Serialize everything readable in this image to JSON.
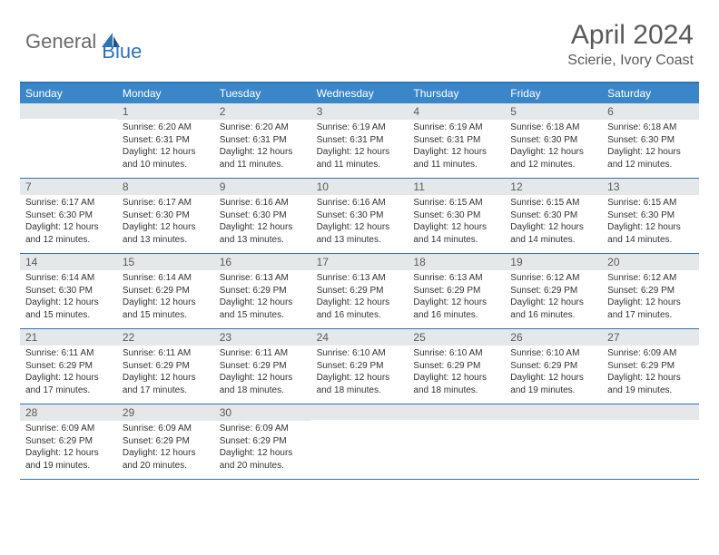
{
  "logo": {
    "general": "General",
    "blue": "Blue"
  },
  "title": "April 2024",
  "location": "Scierie, Ivory Coast",
  "colors": {
    "header_bg": "#3b86c8",
    "border": "#2e72b8",
    "daynum_bg": "#e5e8ea",
    "text": "#333333",
    "title_text": "#5a5a5a"
  },
  "dow": [
    "Sunday",
    "Monday",
    "Tuesday",
    "Wednesday",
    "Thursday",
    "Friday",
    "Saturday"
  ],
  "weeks": [
    [
      {
        "n": "",
        "empty": true
      },
      {
        "n": "1",
        "sr": "Sunrise: 6:20 AM",
        "ss": "Sunset: 6:31 PM",
        "dl1": "Daylight: 12 hours",
        "dl2": "and 10 minutes."
      },
      {
        "n": "2",
        "sr": "Sunrise: 6:20 AM",
        "ss": "Sunset: 6:31 PM",
        "dl1": "Daylight: 12 hours",
        "dl2": "and 11 minutes."
      },
      {
        "n": "3",
        "sr": "Sunrise: 6:19 AM",
        "ss": "Sunset: 6:31 PM",
        "dl1": "Daylight: 12 hours",
        "dl2": "and 11 minutes."
      },
      {
        "n": "4",
        "sr": "Sunrise: 6:19 AM",
        "ss": "Sunset: 6:31 PM",
        "dl1": "Daylight: 12 hours",
        "dl2": "and 11 minutes."
      },
      {
        "n": "5",
        "sr": "Sunrise: 6:18 AM",
        "ss": "Sunset: 6:30 PM",
        "dl1": "Daylight: 12 hours",
        "dl2": "and 12 minutes."
      },
      {
        "n": "6",
        "sr": "Sunrise: 6:18 AM",
        "ss": "Sunset: 6:30 PM",
        "dl1": "Daylight: 12 hours",
        "dl2": "and 12 minutes."
      }
    ],
    [
      {
        "n": "7",
        "sr": "Sunrise: 6:17 AM",
        "ss": "Sunset: 6:30 PM",
        "dl1": "Daylight: 12 hours",
        "dl2": "and 12 minutes."
      },
      {
        "n": "8",
        "sr": "Sunrise: 6:17 AM",
        "ss": "Sunset: 6:30 PM",
        "dl1": "Daylight: 12 hours",
        "dl2": "and 13 minutes."
      },
      {
        "n": "9",
        "sr": "Sunrise: 6:16 AM",
        "ss": "Sunset: 6:30 PM",
        "dl1": "Daylight: 12 hours",
        "dl2": "and 13 minutes."
      },
      {
        "n": "10",
        "sr": "Sunrise: 6:16 AM",
        "ss": "Sunset: 6:30 PM",
        "dl1": "Daylight: 12 hours",
        "dl2": "and 13 minutes."
      },
      {
        "n": "11",
        "sr": "Sunrise: 6:15 AM",
        "ss": "Sunset: 6:30 PM",
        "dl1": "Daylight: 12 hours",
        "dl2": "and 14 minutes."
      },
      {
        "n": "12",
        "sr": "Sunrise: 6:15 AM",
        "ss": "Sunset: 6:30 PM",
        "dl1": "Daylight: 12 hours",
        "dl2": "and 14 minutes."
      },
      {
        "n": "13",
        "sr": "Sunrise: 6:15 AM",
        "ss": "Sunset: 6:30 PM",
        "dl1": "Daylight: 12 hours",
        "dl2": "and 14 minutes."
      }
    ],
    [
      {
        "n": "14",
        "sr": "Sunrise: 6:14 AM",
        "ss": "Sunset: 6:30 PM",
        "dl1": "Daylight: 12 hours",
        "dl2": "and 15 minutes."
      },
      {
        "n": "15",
        "sr": "Sunrise: 6:14 AM",
        "ss": "Sunset: 6:29 PM",
        "dl1": "Daylight: 12 hours",
        "dl2": "and 15 minutes."
      },
      {
        "n": "16",
        "sr": "Sunrise: 6:13 AM",
        "ss": "Sunset: 6:29 PM",
        "dl1": "Daylight: 12 hours",
        "dl2": "and 15 minutes."
      },
      {
        "n": "17",
        "sr": "Sunrise: 6:13 AM",
        "ss": "Sunset: 6:29 PM",
        "dl1": "Daylight: 12 hours",
        "dl2": "and 16 minutes."
      },
      {
        "n": "18",
        "sr": "Sunrise: 6:13 AM",
        "ss": "Sunset: 6:29 PM",
        "dl1": "Daylight: 12 hours",
        "dl2": "and 16 minutes."
      },
      {
        "n": "19",
        "sr": "Sunrise: 6:12 AM",
        "ss": "Sunset: 6:29 PM",
        "dl1": "Daylight: 12 hours",
        "dl2": "and 16 minutes."
      },
      {
        "n": "20",
        "sr": "Sunrise: 6:12 AM",
        "ss": "Sunset: 6:29 PM",
        "dl1": "Daylight: 12 hours",
        "dl2": "and 17 minutes."
      }
    ],
    [
      {
        "n": "21",
        "sr": "Sunrise: 6:11 AM",
        "ss": "Sunset: 6:29 PM",
        "dl1": "Daylight: 12 hours",
        "dl2": "and 17 minutes."
      },
      {
        "n": "22",
        "sr": "Sunrise: 6:11 AM",
        "ss": "Sunset: 6:29 PM",
        "dl1": "Daylight: 12 hours",
        "dl2": "and 17 minutes."
      },
      {
        "n": "23",
        "sr": "Sunrise: 6:11 AM",
        "ss": "Sunset: 6:29 PM",
        "dl1": "Daylight: 12 hours",
        "dl2": "and 18 minutes."
      },
      {
        "n": "24",
        "sr": "Sunrise: 6:10 AM",
        "ss": "Sunset: 6:29 PM",
        "dl1": "Daylight: 12 hours",
        "dl2": "and 18 minutes."
      },
      {
        "n": "25",
        "sr": "Sunrise: 6:10 AM",
        "ss": "Sunset: 6:29 PM",
        "dl1": "Daylight: 12 hours",
        "dl2": "and 18 minutes."
      },
      {
        "n": "26",
        "sr": "Sunrise: 6:10 AM",
        "ss": "Sunset: 6:29 PM",
        "dl1": "Daylight: 12 hours",
        "dl2": "and 19 minutes."
      },
      {
        "n": "27",
        "sr": "Sunrise: 6:09 AM",
        "ss": "Sunset: 6:29 PM",
        "dl1": "Daylight: 12 hours",
        "dl2": "and 19 minutes."
      }
    ],
    [
      {
        "n": "28",
        "sr": "Sunrise: 6:09 AM",
        "ss": "Sunset: 6:29 PM",
        "dl1": "Daylight: 12 hours",
        "dl2": "and 19 minutes."
      },
      {
        "n": "29",
        "sr": "Sunrise: 6:09 AM",
        "ss": "Sunset: 6:29 PM",
        "dl1": "Daylight: 12 hours",
        "dl2": "and 20 minutes."
      },
      {
        "n": "30",
        "sr": "Sunrise: 6:09 AM",
        "ss": "Sunset: 6:29 PM",
        "dl1": "Daylight: 12 hours",
        "dl2": "and 20 minutes."
      },
      {
        "n": "",
        "empty": true
      },
      {
        "n": "",
        "empty": true
      },
      {
        "n": "",
        "empty": true
      },
      {
        "n": "",
        "empty": true
      }
    ]
  ]
}
